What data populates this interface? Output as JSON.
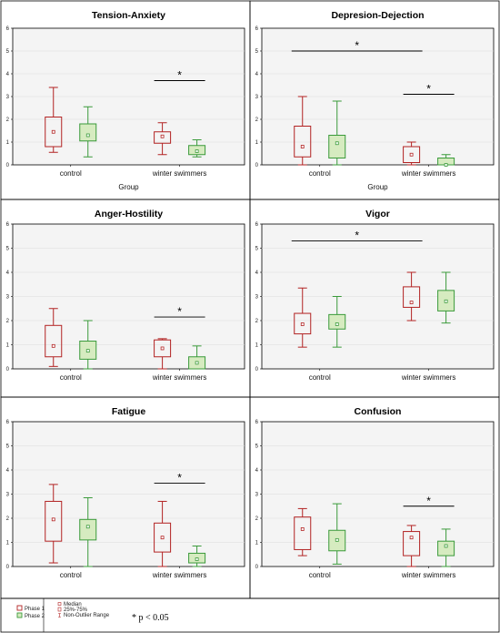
{
  "colors": {
    "phase1_stroke": "#b22222",
    "phase2_stroke": "#3a9a3a",
    "phase2_fill": "#d6ebc0",
    "median_marker_1": "#b22222",
    "median_marker_2": "#3a9a3a",
    "plot_bg": "#f4f4f4",
    "grid": "#dcdcdc"
  },
  "legend": {
    "phase1_label": "Phase 1",
    "phase2_label": "Phase 2",
    "median_label": "Median",
    "iqr_label": "25%-75%",
    "range_label": "Non-Outlier Range",
    "significance_note": "* p < 0.05"
  },
  "chart_data": [
    {
      "type": "box",
      "title": "Tension-Anxiety",
      "xlabel": "Group",
      "ylim": [
        0,
        6
      ],
      "yticks": [
        "0",
        "1",
        "2",
        "3",
        "4",
        "5",
        "6"
      ],
      "categories": [
        "control",
        "winter swimmers"
      ],
      "series": [
        {
          "name": "Phase 1",
          "boxes": [
            {
              "min": 0.55,
              "q1": 0.8,
              "median": 1.45,
              "q3": 2.1,
              "max": 3.4
            },
            {
              "min": 0.45,
              "q1": 0.95,
              "median": 1.25,
              "q3": 1.45,
              "max": 1.85
            }
          ]
        },
        {
          "name": "Phase 2",
          "boxes": [
            {
              "min": 0.35,
              "q1": 1.05,
              "median": 1.3,
              "q3": 1.8,
              "max": 2.55
            },
            {
              "min": 0.35,
              "q1": 0.45,
              "median": 0.6,
              "q3": 0.85,
              "max": 1.1
            }
          ]
        }
      ],
      "significance": [
        {
          "category": "winter swimmers",
          "label": "*",
          "y": 3.7
        }
      ]
    },
    {
      "type": "box",
      "title": "Depresion-Dejection",
      "xlabel": "Group",
      "ylim": [
        0,
        6
      ],
      "yticks": [
        "0",
        "1",
        "2",
        "3",
        "4",
        "5",
        "6"
      ],
      "categories": [
        "control",
        "winter swimmers"
      ],
      "series": [
        {
          "name": "Phase 1",
          "boxes": [
            {
              "min": 0.0,
              "q1": 0.35,
              "median": 0.8,
              "q3": 1.7,
              "max": 3.0
            },
            {
              "min": 0.0,
              "q1": 0.1,
              "median": 0.45,
              "q3": 0.8,
              "max": 1.0
            }
          ]
        },
        {
          "name": "Phase 2",
          "boxes": [
            {
              "min": 0.0,
              "q1": 0.3,
              "median": 0.95,
              "q3": 1.3,
              "max": 2.8
            },
            {
              "min": 0.0,
              "q1": 0.0,
              "median": 0.0,
              "q3": 0.3,
              "max": 0.45
            }
          ]
        }
      ],
      "significance": [
        {
          "span": "control Phase 1 - winter swimmers Phase 1",
          "label": "*",
          "y": 5.0
        },
        {
          "category": "winter swimmers",
          "label": "*",
          "y": 3.1
        }
      ]
    },
    {
      "type": "box",
      "title": "Anger-Hostility",
      "xlabel": "",
      "ylim": [
        0,
        6
      ],
      "yticks": [
        "0",
        "1",
        "2",
        "3",
        "4",
        "5",
        "6"
      ],
      "categories": [
        "control",
        "winter swimmers"
      ],
      "series": [
        {
          "name": "Phase 1",
          "boxes": [
            {
              "min": 0.1,
              "q1": 0.5,
              "median": 0.95,
              "q3": 1.8,
              "max": 2.5
            },
            {
              "min": 0.0,
              "q1": 0.5,
              "median": 0.85,
              "q3": 1.2,
              "max": 1.25
            }
          ]
        },
        {
          "name": "Phase 2",
          "boxes": [
            {
              "min": 0.0,
              "q1": 0.4,
              "median": 0.75,
              "q3": 1.15,
              "max": 2.0
            },
            {
              "min": 0.0,
              "q1": 0.0,
              "median": 0.25,
              "q3": 0.5,
              "max": 0.95
            }
          ]
        }
      ],
      "significance": [
        {
          "category": "winter swimmers",
          "label": "*",
          "y": 2.15
        }
      ]
    },
    {
      "type": "box",
      "title": "Vigor",
      "xlabel": "",
      "ylim": [
        0,
        6
      ],
      "yticks": [
        "0",
        "1",
        "2",
        "3",
        "4",
        "5",
        "6"
      ],
      "categories": [
        "control",
        "winter swimmers"
      ],
      "series": [
        {
          "name": "Phase 1",
          "boxes": [
            {
              "min": 0.9,
              "q1": 1.45,
              "median": 1.85,
              "q3": 2.3,
              "max": 3.35
            },
            {
              "min": 2.0,
              "q1": 2.55,
              "median": 2.75,
              "q3": 3.4,
              "max": 4.0
            }
          ]
        },
        {
          "name": "Phase 2",
          "boxes": [
            {
              "min": 0.9,
              "q1": 1.65,
              "median": 1.85,
              "q3": 2.25,
              "max": 3.0
            },
            {
              "min": 1.9,
              "q1": 2.4,
              "median": 2.8,
              "q3": 3.25,
              "max": 4.0
            }
          ]
        }
      ],
      "significance": [
        {
          "span": "control Phase 1 - winter swimmers Phase 1",
          "label": "*",
          "y": 5.3
        }
      ]
    },
    {
      "type": "box",
      "title": "Fatigue",
      "xlabel": "",
      "ylim": [
        0,
        6
      ],
      "yticks": [
        "0",
        "1",
        "2",
        "3",
        "4",
        "5",
        "6"
      ],
      "categories": [
        "control",
        "winter swimmers"
      ],
      "series": [
        {
          "name": "Phase 1",
          "boxes": [
            {
              "min": 0.15,
              "q1": 1.05,
              "median": 1.95,
              "q3": 2.7,
              "max": 3.4
            },
            {
              "min": 0.0,
              "q1": 0.6,
              "median": 1.2,
              "q3": 1.8,
              "max": 2.7
            }
          ]
        },
        {
          "name": "Phase 2",
          "boxes": [
            {
              "min": 0.0,
              "q1": 1.1,
              "median": 1.65,
              "q3": 1.95,
              "max": 2.85
            },
            {
              "min": 0.0,
              "q1": 0.15,
              "median": 0.3,
              "q3": 0.55,
              "max": 0.85
            }
          ]
        }
      ],
      "significance": [
        {
          "category": "winter swimmers",
          "label": "*",
          "y": 3.45
        }
      ]
    },
    {
      "type": "box",
      "title": "Confusion",
      "xlabel": "",
      "ylim": [
        0,
        6
      ],
      "yticks": [
        "0",
        "1",
        "2",
        "3",
        "4",
        "5",
        "6"
      ],
      "categories": [
        "control",
        "winter swimmers"
      ],
      "series": [
        {
          "name": "Phase 1",
          "boxes": [
            {
              "min": 0.45,
              "q1": 0.7,
              "median": 1.55,
              "q3": 2.05,
              "max": 2.4
            },
            {
              "min": 0.0,
              "q1": 0.45,
              "median": 1.2,
              "q3": 1.45,
              "max": 1.7
            }
          ]
        },
        {
          "name": "Phase 2",
          "boxes": [
            {
              "min": 0.1,
              "q1": 0.65,
              "median": 1.1,
              "q3": 1.5,
              "max": 2.6
            },
            {
              "min": 0.0,
              "q1": 0.45,
              "median": 0.85,
              "q3": 1.05,
              "max": 1.55
            }
          ]
        }
      ],
      "significance": [
        {
          "category": "winter swimmers",
          "label": "*",
          "y": 2.5
        }
      ]
    }
  ]
}
